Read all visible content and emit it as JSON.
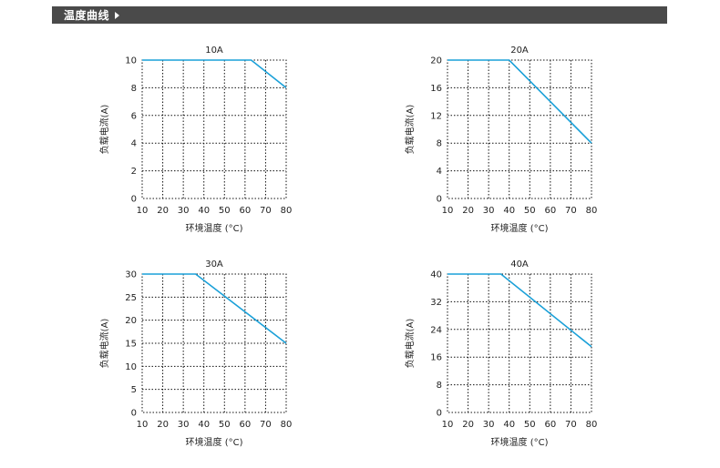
{
  "header": {
    "title": "温度曲线",
    "arrow_icon": "caret-right-icon"
  },
  "colors": {
    "header_bg": "#4a4a4a",
    "series": "#1aa0d8",
    "grid": "#111111"
  },
  "chart_data": [
    {
      "type": "line",
      "title": "10A",
      "xlabel": "环境温度 (°C)",
      "ylabel": "负载电流(A)",
      "xlim": [
        10,
        80
      ],
      "ylim": [
        0,
        10
      ],
      "xticks": [
        10,
        20,
        30,
        40,
        50,
        60,
        70,
        80
      ],
      "yticks": [
        0,
        2,
        4,
        6,
        8,
        10
      ],
      "grid": true,
      "x": [
        10,
        63,
        80
      ],
      "y": [
        10,
        10,
        8
      ]
    },
    {
      "type": "line",
      "title": "20A",
      "xlabel": "环境温度 (°C)",
      "ylabel": "负载电流(A)",
      "xlim": [
        10,
        80
      ],
      "ylim": [
        0,
        20
      ],
      "xticks": [
        10,
        20,
        30,
        40,
        50,
        60,
        70,
        80
      ],
      "yticks": [
        0,
        4,
        8,
        12,
        16,
        20
      ],
      "grid": true,
      "x": [
        10,
        40,
        80
      ],
      "y": [
        20,
        20,
        8
      ]
    },
    {
      "type": "line",
      "title": "30A",
      "xlabel": "环境温度 (°C)",
      "ylabel": "负载电流(A)",
      "xlim": [
        10,
        80
      ],
      "ylim": [
        0,
        30
      ],
      "xticks": [
        10,
        20,
        30,
        40,
        50,
        60,
        70,
        80
      ],
      "yticks": [
        0,
        5,
        10,
        15,
        20,
        25,
        30
      ],
      "grid": true,
      "x": [
        10,
        36,
        80
      ],
      "y": [
        30,
        30,
        15
      ]
    },
    {
      "type": "line",
      "title": "40A",
      "xlabel": "环境温度 (°C)",
      "ylabel": "负载电流(A)",
      "xlim": [
        10,
        80
      ],
      "ylim": [
        0,
        40
      ],
      "xticks": [
        10,
        20,
        30,
        40,
        50,
        60,
        70,
        80
      ],
      "yticks": [
        0,
        8,
        16,
        24,
        32,
        40
      ],
      "grid": true,
      "x": [
        10,
        36,
        80
      ],
      "y": [
        40,
        40,
        19
      ]
    }
  ]
}
